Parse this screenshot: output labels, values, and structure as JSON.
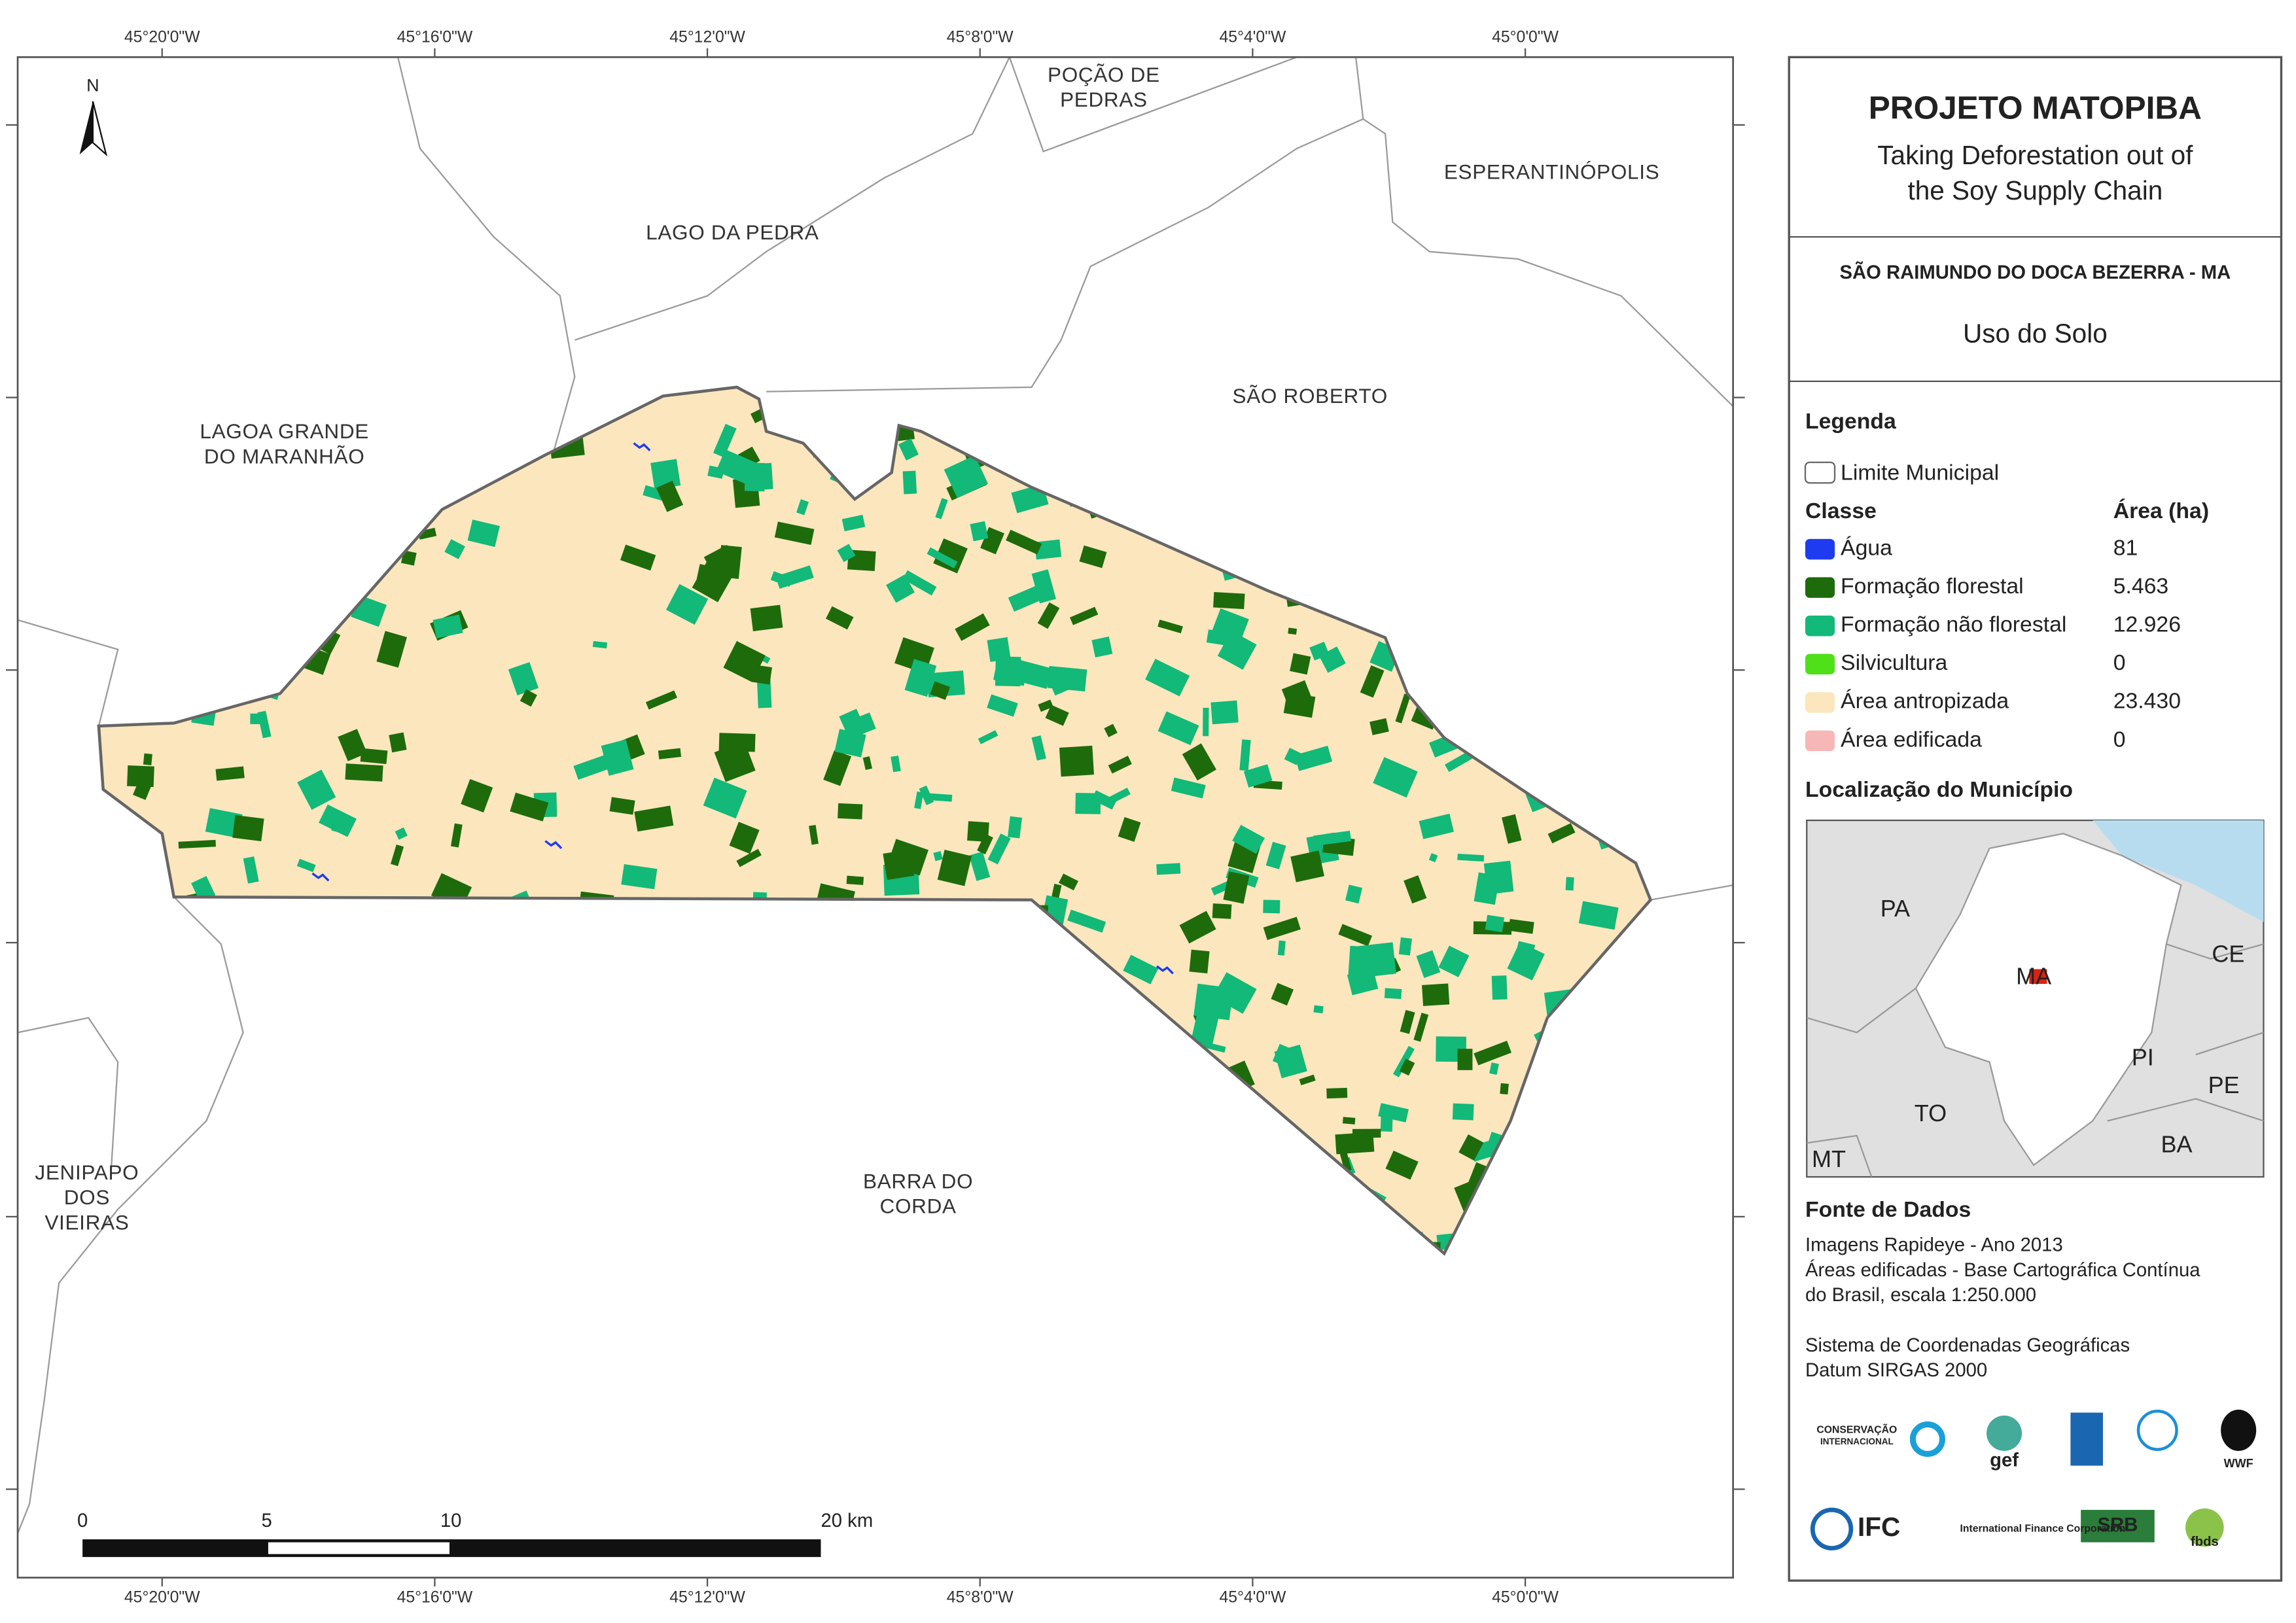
{
  "map": {
    "north": "N",
    "coord_labels": [
      "45°20'0\"W",
      "45°16'0\"W",
      "45°12'0\"W",
      "45°8'0\"W",
      "45°4'0\"W",
      "45°0'0\"W"
    ],
    "places": [
      {
        "lines": [
          "POÇÃO DE",
          "PEDRAS"
        ]
      },
      {
        "lines": [
          "ESPERANTINÓPOLIS"
        ]
      },
      {
        "lines": [
          "LAGO DA PEDRA"
        ]
      },
      {
        "lines": [
          "SÃO ROBERTO"
        ]
      },
      {
        "lines": [
          "LAGOA GRANDE",
          "DO MARANHÃO"
        ]
      },
      {
        "lines": [
          "JENIPAPO",
          "DOS",
          "VIEIRAS"
        ]
      },
      {
        "lines": [
          "BARRA DO",
          "CORDA"
        ]
      }
    ],
    "scale": [
      "0",
      "5",
      "10",
      "20 km"
    ]
  },
  "panel": {
    "title": "PROJETO MATOPIBA",
    "subtitle": [
      "Taking Deforestation out of",
      "the Soy Supply Chain"
    ],
    "municipality": "SÃO RAIMUNDO DO DOCA BEZERRA - MA",
    "theme": "Uso do Solo",
    "legend_heading": "Legenda",
    "boundary": "Limite Municipal",
    "class_header": "Classe",
    "area_header": "Área (ha)",
    "classes": [
      {
        "name": "Água",
        "color": "#1f3bf0",
        "area": "81"
      },
      {
        "name": "Formação florestal",
        "color": "#1e6b0c",
        "area": "5.463"
      },
      {
        "name": "Formação não florestal",
        "color": "#12b978",
        "area": "12.926"
      },
      {
        "name": "Silvicultura",
        "color": "#4fe01a",
        "area": "0"
      },
      {
        "name": "Área antropizada",
        "color": "#fbe6be",
        "area": "23.430"
      },
      {
        "name": "Área edificada",
        "color": "#f7b7b7",
        "area": "0"
      }
    ],
    "location_heading": "Localização do Município",
    "inset_labels": [
      "PA",
      "MA",
      "CE",
      "PI",
      "PE",
      "TO",
      "BA",
      "MT"
    ],
    "sources_heading": "Fonte de Dados",
    "sources": [
      "Imagens Rapideye - Ano 2013",
      "Áreas edificadas - Base Cartográfica Contínua",
      "do Brasil, escala 1:250.000",
      "",
      "Sistema de Coordenadas Geográficas",
      "Datum SIRGAS 2000"
    ],
    "logos": [
      "CONSERVAÇÃO",
      "INTERNACIONAL",
      "gef",
      "WWF",
      "IFC",
      "International Finance Corporation",
      "SRB",
      "fbds"
    ]
  }
}
